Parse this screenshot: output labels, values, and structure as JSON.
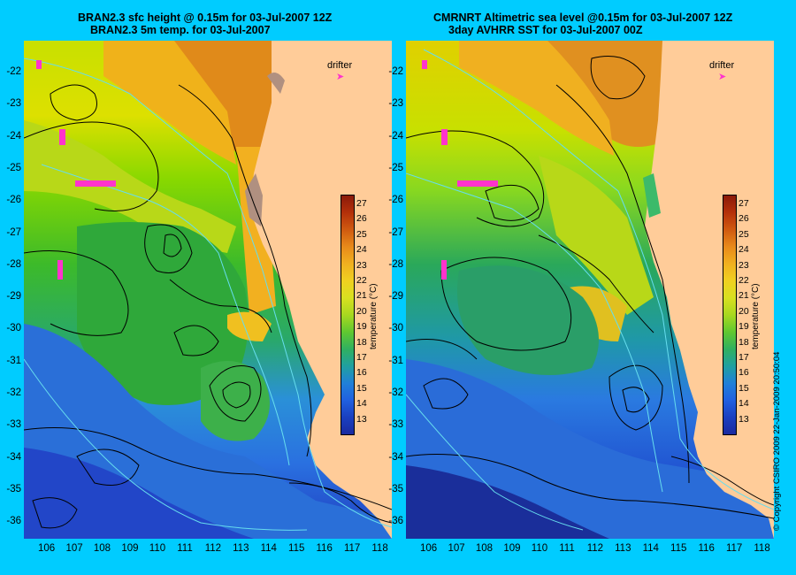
{
  "left_panel": {
    "title_line1": "BRAN2.3 sfc height @ 0.15m for 03-Jul-2007 12Z",
    "title_line2": "BRAN2.3 5m temp. for 03-Jul-2007",
    "drifter_label": "drifter"
  },
  "right_panel": {
    "title_line1": "CMRNRT Altimetric sea level  @0.15m  for 03-Jul-2007 12Z",
    "title_line2": "3day AVHRR SST for 03-Jul-2007 00Z",
    "drifter_label": "drifter"
  },
  "axes": {
    "lat_ticks": [
      "-22",
      "-23",
      "-24",
      "-25",
      "-26",
      "-27",
      "-28",
      "-29",
      "-30",
      "-31",
      "-32",
      "-33",
      "-34",
      "-35",
      "-36"
    ],
    "lon_ticks": [
      "106",
      "107",
      "108",
      "109",
      "110",
      "111",
      "112",
      "113",
      "114",
      "115",
      "116",
      "117",
      "118"
    ]
  },
  "colorbar": {
    "title": "temperature (°C)",
    "ticks": [
      "27",
      "26",
      "25",
      "24",
      "23",
      "22",
      "21",
      "20",
      "19",
      "18",
      "17",
      "16",
      "15",
      "14",
      "13"
    ],
    "range": [
      12.5,
      27.5
    ]
  },
  "copyright": "© Copyright CSIRO 2009   22-Jan-2009 20:50:04",
  "colors": {
    "background": "#00ccff",
    "land": "#ffcc99",
    "drifter": "#ff33cc",
    "contour": "#000000",
    "isobath": "#66ddee"
  }
}
